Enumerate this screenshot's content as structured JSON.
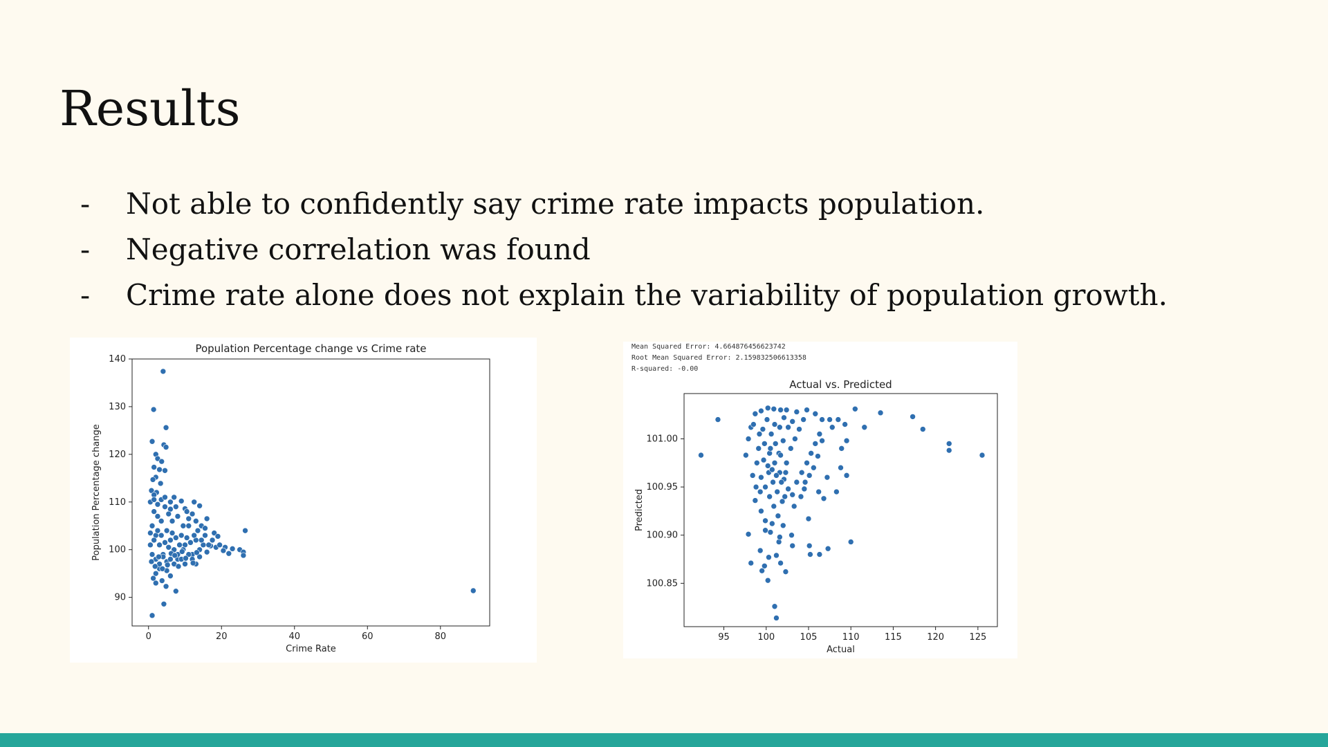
{
  "slide": {
    "title": "Results",
    "bullets": [
      {
        "marker": "-",
        "text": "Not able to confidently say crime rate impacts population."
      },
      {
        "marker": "-",
        "text": "Negative correlation was found"
      },
      {
        "marker": "-",
        "text": "Crime rate alone does not explain the variability of population growth."
      }
    ],
    "footer_color": "#26a69a"
  },
  "metrics": {
    "mse": "Mean Squared Error: 4.664876456623742",
    "rmse": "Root Mean Squared Error: 2.159832506613358",
    "r2": "R-squared: -0.00"
  },
  "chart_data": [
    {
      "type": "scatter",
      "title": "Population Percentage change vs Crime rate",
      "xlabel": "Crime Rate",
      "ylabel": "Population Percentage change",
      "xlim": [
        -4.5,
        93.5
      ],
      "ylim": [
        84,
        140
      ],
      "xticks": [
        0,
        20,
        40,
        60,
        80
      ],
      "yticks": [
        90,
        100,
        110,
        120,
        130,
        140
      ],
      "color": "#2f6fb0",
      "grid": false,
      "points": [
        [
          4,
          137.4
        ],
        [
          1.4,
          129.4
        ],
        [
          4.8,
          125.6
        ],
        [
          1,
          122.7
        ],
        [
          4.2,
          122
        ],
        [
          4.8,
          121.5
        ],
        [
          2,
          120
        ],
        [
          2.5,
          119.1
        ],
        [
          3.6,
          118.5
        ],
        [
          1.5,
          117.3
        ],
        [
          3,
          116.8
        ],
        [
          4.5,
          116.6
        ],
        [
          2,
          115.2
        ],
        [
          1.2,
          114.7
        ],
        [
          3.3,
          113.9
        ],
        [
          0.8,
          112.4
        ],
        [
          2.2,
          112
        ],
        [
          1.5,
          111.5
        ],
        [
          7,
          111
        ],
        [
          12.5,
          110
        ],
        [
          14,
          109.2
        ],
        [
          10,
          108.6
        ],
        [
          6,
          108.5
        ],
        [
          16,
          106.5
        ],
        [
          18,
          103.5
        ],
        [
          26.5,
          104
        ],
        [
          19,
          102.8
        ],
        [
          25,
          100
        ],
        [
          26,
          99.5
        ],
        [
          26,
          98.8
        ],
        [
          21,
          100.5
        ],
        [
          23,
          100.2
        ],
        [
          22,
          99.2
        ],
        [
          3,
          96
        ],
        [
          5,
          95.6
        ],
        [
          2,
          95
        ],
        [
          6,
          94.5
        ],
        [
          1.3,
          94
        ],
        [
          3.7,
          93.5
        ],
        [
          2,
          93
        ],
        [
          4.8,
          92.3
        ],
        [
          7.5,
          91.3
        ],
        [
          4.2,
          88.6
        ],
        [
          1,
          86.2
        ],
        [
          89,
          91.4
        ],
        [
          1,
          105
        ],
        [
          2,
          103
        ],
        [
          3,
          101
        ],
        [
          4,
          99
        ],
        [
          5,
          104
        ],
        [
          6,
          102
        ],
        [
          7,
          100
        ],
        [
          8,
          98
        ],
        [
          9,
          103
        ],
        [
          10,
          101
        ],
        [
          11,
          105
        ],
        [
          12,
          99
        ],
        [
          13,
          102
        ],
        [
          14,
          100
        ],
        [
          15,
          101
        ],
        [
          16,
          99.5
        ],
        [
          17,
          100.8
        ],
        [
          1.5,
          108
        ],
        [
          2.5,
          107
        ],
        [
          3.5,
          106
        ],
        [
          4.5,
          109
        ],
        [
          5.5,
          107.5
        ],
        [
          6.5,
          106
        ],
        [
          8,
          107
        ],
        [
          9.5,
          105
        ],
        [
          11,
          106.5
        ],
        [
          0.5,
          101
        ],
        [
          1,
          99
        ],
        [
          2,
          98
        ],
        [
          3,
          97
        ],
        [
          4,
          98.5
        ],
        [
          5,
          97.5
        ],
        [
          6,
          98
        ],
        [
          7,
          97
        ],
        [
          8,
          99
        ],
        [
          9,
          98
        ],
        [
          10,
          97
        ],
        [
          11,
          99
        ],
        [
          12,
          98
        ],
        [
          13,
          97
        ],
        [
          14,
          98.5
        ],
        [
          0.5,
          103.5
        ],
        [
          1.5,
          102
        ],
        [
          2.5,
          104
        ],
        [
          3.5,
          103
        ],
        [
          4.5,
          101.5
        ],
        [
          5.5,
          100.5
        ],
        [
          6.5,
          103.5
        ],
        [
          7.5,
          102.5
        ],
        [
          8.5,
          101
        ],
        [
          9.5,
          100
        ],
        [
          10.5,
          102.5
        ],
        [
          11.5,
          101.5
        ],
        [
          12.5,
          103
        ],
        [
          13.5,
          104
        ],
        [
          14.5,
          102
        ],
        [
          15.5,
          103
        ],
        [
          16.5,
          101
        ],
        [
          17.5,
          102
        ],
        [
          18.5,
          100.5
        ],
        [
          19.5,
          101
        ],
        [
          20.5,
          99.8
        ],
        [
          0.5,
          110
        ],
        [
          1.5,
          110.5
        ],
        [
          2.5,
          109.5
        ],
        [
          3.5,
          110.5
        ],
        [
          4.5,
          111
        ],
        [
          6,
          110
        ],
        [
          7.5,
          109
        ],
        [
          9,
          110.2
        ],
        [
          10.5,
          108
        ],
        [
          12,
          107.5
        ],
        [
          13,
          106
        ],
        [
          14.5,
          105
        ],
        [
          15.5,
          104.5
        ],
        [
          0.8,
          97.5
        ],
        [
          1.8,
          96.5
        ],
        [
          2.8,
          98.5
        ],
        [
          3.8,
          96
        ],
        [
          5.2,
          96.8
        ],
        [
          6.2,
          99.2
        ],
        [
          7.2,
          98.8
        ],
        [
          8.2,
          96.5
        ],
        [
          9.2,
          99.6
        ],
        [
          10.2,
          98.2
        ],
        [
          12.2,
          97.2
        ],
        [
          13.2,
          99.4
        ]
      ]
    },
    {
      "type": "scatter",
      "title": "Actual vs. Predicted",
      "xlabel": "Actual",
      "ylabel": "Predicted",
      "xlim": [
        90.3,
        127.3
      ],
      "ylim": [
        100.805,
        101.047
      ],
      "xticks": [
        95,
        100,
        105,
        110,
        115,
        120,
        125
      ],
      "yticks": [
        100.85,
        100.9,
        100.95,
        101.0
      ],
      "ytick_labels": [
        "100.85",
        "100.90",
        "100.95",
        "101.00"
      ],
      "color": "#2f6fb0",
      "grid": false,
      "points": [
        [
          92.3,
          100.983
        ],
        [
          94.3,
          101.02
        ],
        [
          110.5,
          101.031
        ],
        [
          113.5,
          101.027
        ],
        [
          117.3,
          101.023
        ],
        [
          118.5,
          101.01
        ],
        [
          121.6,
          100.995
        ],
        [
          121.6,
          100.988
        ],
        [
          125.5,
          100.983
        ],
        [
          111.6,
          101.012
        ],
        [
          101,
          100.826
        ],
        [
          101.2,
          100.814
        ],
        [
          100.2,
          100.853
        ],
        [
          99.5,
          100.863
        ],
        [
          98.2,
          100.871
        ],
        [
          99.8,
          100.868
        ],
        [
          101.7,
          100.871
        ],
        [
          102.3,
          100.862
        ],
        [
          97.9,
          100.901
        ],
        [
          99.3,
          100.884
        ],
        [
          100.3,
          100.877
        ],
        [
          101.2,
          100.879
        ],
        [
          103.1,
          100.889
        ],
        [
          105.1,
          100.889
        ],
        [
          105.2,
          100.88
        ],
        [
          106.3,
          100.88
        ],
        [
          107.3,
          100.886
        ],
        [
          110,
          100.893
        ],
        [
          103,
          100.9
        ],
        [
          101.5,
          100.893
        ],
        [
          101.6,
          100.898
        ],
        [
          100.5,
          100.903
        ],
        [
          99.9,
          100.905
        ],
        [
          102,
          100.91
        ],
        [
          105,
          100.917
        ],
        [
          103.3,
          100.93
        ],
        [
          106.2,
          100.945
        ],
        [
          106.8,
          100.938
        ],
        [
          108.3,
          100.945
        ],
        [
          104.5,
          100.948
        ],
        [
          107.2,
          100.96
        ],
        [
          108.8,
          100.97
        ],
        [
          109.5,
          100.962
        ],
        [
          108.9,
          100.99
        ],
        [
          109.5,
          100.998
        ],
        [
          107.5,
          101.02
        ],
        [
          108.5,
          101.02
        ],
        [
          109.3,
          101.015
        ],
        [
          98.7,
          100.936
        ],
        [
          99.4,
          100.925
        ],
        [
          99.9,
          100.915
        ],
        [
          100.7,
          100.912
        ],
        [
          97.6,
          100.983
        ],
        [
          97.9,
          101.0
        ],
        [
          98.2,
          101.012
        ],
        [
          98.7,
          101.026
        ],
        [
          99.4,
          101.029
        ],
        [
          100.2,
          101.032
        ],
        [
          100.9,
          101.031
        ],
        [
          101.7,
          101.03
        ],
        [
          102.4,
          101.03
        ],
        [
          103.6,
          101.028
        ],
        [
          104.8,
          101.03
        ],
        [
          105.8,
          101.026
        ],
        [
          106.6,
          101.02
        ],
        [
          107.8,
          101.012
        ],
        [
          98.5,
          101.015
        ],
        [
          99.2,
          101.005
        ],
        [
          99.8,
          100.995
        ],
        [
          100.4,
          100.985
        ],
        [
          101,
          100.975
        ],
        [
          101.6,
          100.965
        ],
        [
          102.1,
          100.958
        ],
        [
          102.6,
          100.948
        ],
        [
          103.1,
          100.942
        ],
        [
          103.6,
          100.955
        ],
        [
          104.2,
          100.965
        ],
        [
          104.8,
          100.975
        ],
        [
          105.3,
          100.985
        ],
        [
          105.8,
          100.995
        ],
        [
          106.3,
          101.005
        ],
        [
          98.9,
          100.975
        ],
        [
          99.4,
          100.96
        ],
        [
          99.9,
          100.95
        ],
        [
          100.4,
          100.94
        ],
        [
          100.9,
          100.93
        ],
        [
          101.4,
          100.92
        ],
        [
          101.9,
          100.935
        ],
        [
          102.4,
          100.975
        ],
        [
          102.9,
          100.99
        ],
        [
          103.4,
          101.0
        ],
        [
          103.9,
          101.01
        ],
        [
          104.4,
          101.02
        ],
        [
          99.1,
          100.99
        ],
        [
          99.6,
          101.01
        ],
        [
          100.1,
          101.02
        ],
        [
          100.6,
          101.005
        ],
        [
          101.1,
          100.995
        ],
        [
          101.6,
          101.012
        ],
        [
          102.1,
          101.022
        ],
        [
          102.6,
          101.012
        ],
        [
          103.1,
          101.018
        ],
        [
          100.3,
          100.965
        ],
        [
          100.8,
          100.955
        ],
        [
          101.3,
          100.945
        ],
        [
          101.8,
          100.955
        ],
        [
          102.3,
          100.965
        ],
        [
          100.5,
          100.99
        ],
        [
          101.0,
          101.015
        ],
        [
          101.5,
          100.985
        ],
        [
          102.0,
          100.998
        ],
        [
          99.7,
          100.978
        ],
        [
          100.2,
          100.972
        ],
        [
          100.7,
          100.968
        ],
        [
          101.2,
          100.962
        ],
        [
          101.7,
          100.983
        ],
        [
          102.2,
          100.94
        ],
        [
          98.4,
          100.962
        ],
        [
          98.8,
          100.95
        ],
        [
          99.3,
          100.945
        ],
        [
          104.1,
          100.94
        ],
        [
          104.6,
          100.955
        ],
        [
          105.1,
          100.962
        ],
        [
          105.6,
          100.97
        ],
        [
          106.1,
          100.982
        ],
        [
          106.6,
          100.998
        ]
      ]
    }
  ]
}
